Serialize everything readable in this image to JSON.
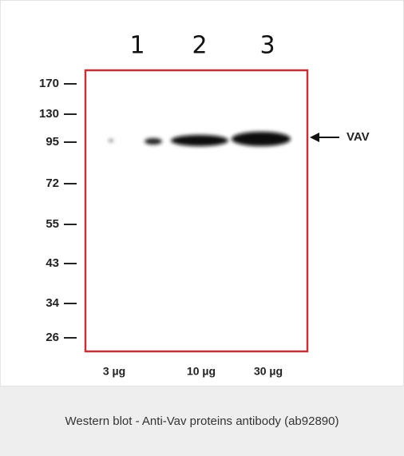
{
  "lanes": [
    "1",
    "2",
    "3"
  ],
  "markers": [
    "170",
    "130",
    "95",
    "72",
    "55",
    "43",
    "34",
    "26"
  ],
  "band_label": "VAV",
  "loadings": [
    "3 µg",
    "10 µg",
    "30 µg"
  ],
  "caption": "Western blot - Anti-Vav proteins antibody (ab92890)"
}
